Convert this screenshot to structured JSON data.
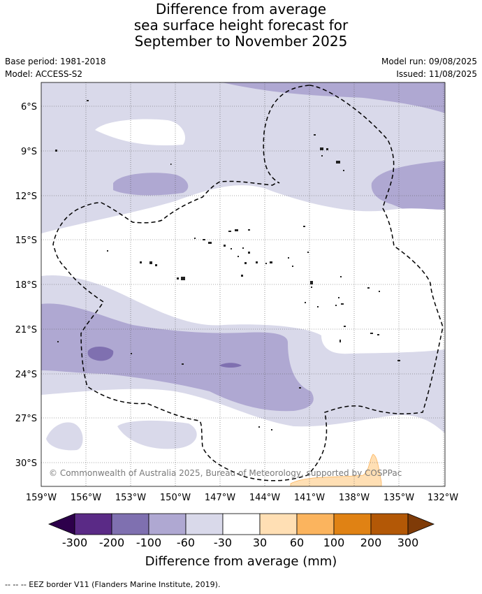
{
  "title": {
    "line1": "Difference from average",
    "line2": "sea surface height forecast for",
    "line3": "September to November 2025"
  },
  "meta": {
    "base_period": "Base period: 1981-2018",
    "model": "Model: ACCESS-S2",
    "model_run": "Model run: 09/08/2025",
    "issued": "Issued: 11/08/2025"
  },
  "map": {
    "lat_labels": [
      "6°S",
      "9°S",
      "12°S",
      "15°S",
      "18°S",
      "21°S",
      "24°S",
      "27°S",
      "30°S"
    ],
    "lon_labels": [
      "159°W",
      "156°W",
      "153°W",
      "150°W",
      "147°W",
      "144°W",
      "141°W",
      "138°W",
      "135°W",
      "132°W"
    ],
    "copyright": "© Commonwealth of Australia 2025, Bureau of Meteorology, supported by COSPPac"
  },
  "colorbar": {
    "title": "Difference from average (mm)",
    "ticks": [
      "-300",
      "-200",
      "-100",
      "-60",
      "-30",
      "30",
      "60",
      "100",
      "200",
      "300"
    ],
    "colors": [
      "#5a2a86",
      "#7f70b0",
      "#afa8d2",
      "#d9d9ea",
      "#ffffff",
      "#ffdfb4",
      "#fbb45e",
      "#e08214",
      "#b35806"
    ],
    "extend_low": "#2d004b",
    "extend_high": "#7f3b08"
  },
  "footer": {
    "legend": "--  --  -- EEZ border V11 (Flanders Marine Institute, 2019)."
  }
}
